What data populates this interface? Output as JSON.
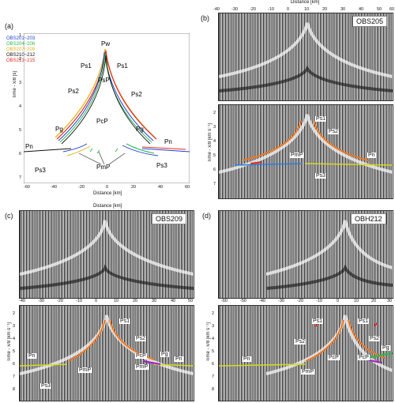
{
  "panels": {
    "a": {
      "label": "(a)",
      "legend": [
        {
          "text": "OBS201~203",
          "color": "#1f3fd8"
        },
        {
          "text": "OBS204~206",
          "color": "#2db84a"
        },
        {
          "text": "OBS207~209",
          "color": "#e3b21a"
        },
        {
          "text": "OBS210~212",
          "color": "#111111"
        },
        {
          "text": "OBS213~215",
          "color": "#e32b1f"
        }
      ],
      "phases": [
        "Pw",
        "Ps1",
        "Ps1",
        "PsP",
        "Ps2",
        "Ps2",
        "PcP",
        "Pg",
        "Pg",
        "Pn",
        "Pn",
        "Ps3",
        "Ps3",
        "PmP"
      ],
      "xlabel": "Distance [km]",
      "ylabel": "Time - x/8 [s]",
      "xticks": [
        "-60",
        "-40",
        "-20",
        "0",
        "20",
        "40",
        "60"
      ],
      "yticks": [
        "1",
        "2",
        "3",
        "4",
        "5",
        "6",
        "7"
      ]
    },
    "b": {
      "label": "(b)",
      "badge": "OBS205",
      "top_axis_label": "Distance [km]",
      "top_ticks": [
        "-40",
        "-30",
        "-20",
        "-10",
        "0",
        "10",
        "20",
        "30",
        "40",
        "50",
        "60"
      ],
      "yticks": [
        "2",
        "3",
        "4",
        "5",
        "6",
        "7"
      ],
      "ylabel": "Time - x/8 [km s⁻¹]",
      "phases": [
        "Ps1",
        "Ps2",
        "PmP",
        "Pn",
        "Ps3"
      ]
    },
    "c": {
      "label": "(c)",
      "badge": "OBS209",
      "top_axis_label": "Distance [km]",
      "ticks": [
        "-40",
        "-30",
        "-20",
        "-10",
        "0",
        "10",
        "20",
        "30",
        "40",
        "50"
      ],
      "yticks": [
        "2",
        "3",
        "4",
        "5",
        "6",
        "7",
        "8"
      ],
      "ylabel": "Time - x/8 [km s⁻¹]",
      "phases": [
        "Ps1",
        "Ps2",
        "Pn",
        "Pn",
        "PmP",
        "PcP",
        "PmP",
        "Pg",
        "Ps3"
      ]
    },
    "d": {
      "label": "(d)",
      "badge": "OBH212",
      "ticks": [
        "-60",
        "-50",
        "-40",
        "-30",
        "-20",
        "-10",
        "0",
        "10",
        "20",
        "30"
      ],
      "yticks": [
        "2",
        "3",
        "4",
        "5",
        "6",
        "7",
        "8"
      ],
      "ylabel": "Time - x/8 [km s⁻¹]",
      "phases": [
        "Ps1",
        "Ps1",
        "Ps2",
        "Ps2",
        "Pn",
        "PmP",
        "PcP",
        "PcP",
        "Pg"
      ]
    }
  }
}
